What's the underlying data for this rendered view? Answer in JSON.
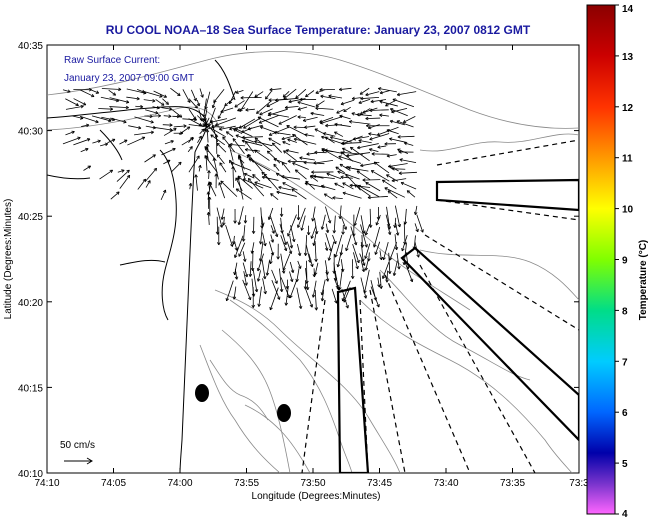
{
  "title": "RU COOL  NOAA–18  Sea Surface Temperature:  January 23, 2007 0812 GMT",
  "legend": {
    "line1": "Raw Surface Current:",
    "line2": "January 23, 2007 09:00 GMT"
  },
  "scale_label": "50 cm/s",
  "x_axis": {
    "label": "Longitude (Degrees:Minutes)",
    "ticks": [
      "74:10",
      "74:05",
      "74:00",
      "73:55",
      "73:50",
      "73:45",
      "73:40",
      "73:35",
      "73:3"
    ]
  },
  "y_axis": {
    "label": "Latitude (Degrees:Minutes)",
    "ticks": [
      "40:35",
      "40:30",
      "40:25",
      "40:20",
      "40:15",
      "40:10"
    ]
  },
  "colorbar": {
    "label": "Temperature (°C)",
    "ticks": [
      "14",
      "13",
      "12",
      "11",
      "10",
      "9",
      "8",
      "7",
      "6",
      "5",
      "4"
    ],
    "colors": [
      "#8b0000",
      "#cc0000",
      "#ff3300",
      "#ff9900",
      "#ffff00",
      "#80ff00",
      "#00dd88",
      "#00ccff",
      "#0066ff",
      "#0000aa",
      "#7733cc",
      "#ff66ff"
    ]
  }
}
